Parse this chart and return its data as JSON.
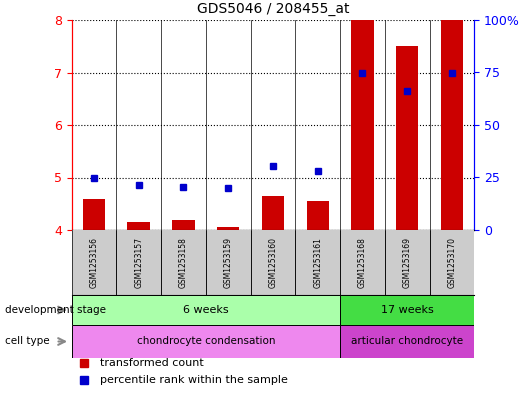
{
  "title": "GDS5046 / 208455_at",
  "samples": [
    "GSM1253156",
    "GSM1253157",
    "GSM1253158",
    "GSM1253159",
    "GSM1253160",
    "GSM1253161",
    "GSM1253168",
    "GSM1253169",
    "GSM1253170"
  ],
  "bar_values": [
    4.6,
    4.15,
    4.2,
    4.05,
    4.65,
    4.55,
    8.0,
    7.5,
    8.0
  ],
  "dot_values": [
    5.0,
    4.85,
    4.82,
    4.8,
    5.22,
    5.12,
    7.0,
    6.65,
    7.0
  ],
  "ylim": [
    4.0,
    8.0
  ],
  "y_ticks_left": [
    4,
    5,
    6,
    7,
    8
  ],
  "y_ticks_right": [
    0,
    25,
    50,
    75,
    100
  ],
  "ytick_right_labels": [
    "0",
    "25",
    "50",
    "75",
    "100%"
  ],
  "group_starts": [
    0,
    6
  ],
  "group_ends": [
    6,
    9
  ],
  "group_labels": [
    "6 weeks",
    "17 weeks"
  ],
  "group_colors": [
    "#aaffaa",
    "#44dd44"
  ],
  "cell_colors": [
    "#ee88ee",
    "#cc44cc"
  ],
  "cell_labels": [
    "chondrocyte condensation",
    "articular chondrocyte"
  ],
  "bar_color": "#cc0000",
  "dot_color": "#0000cc",
  "bar_width": 0.5,
  "legend_items": [
    {
      "label": "transformed count",
      "color": "#cc0000"
    },
    {
      "label": "percentile rank within the sample",
      "color": "#0000cc"
    }
  ],
  "background_color": "#ffffff",
  "label_row1": "development stage",
  "label_row2": "cell type"
}
